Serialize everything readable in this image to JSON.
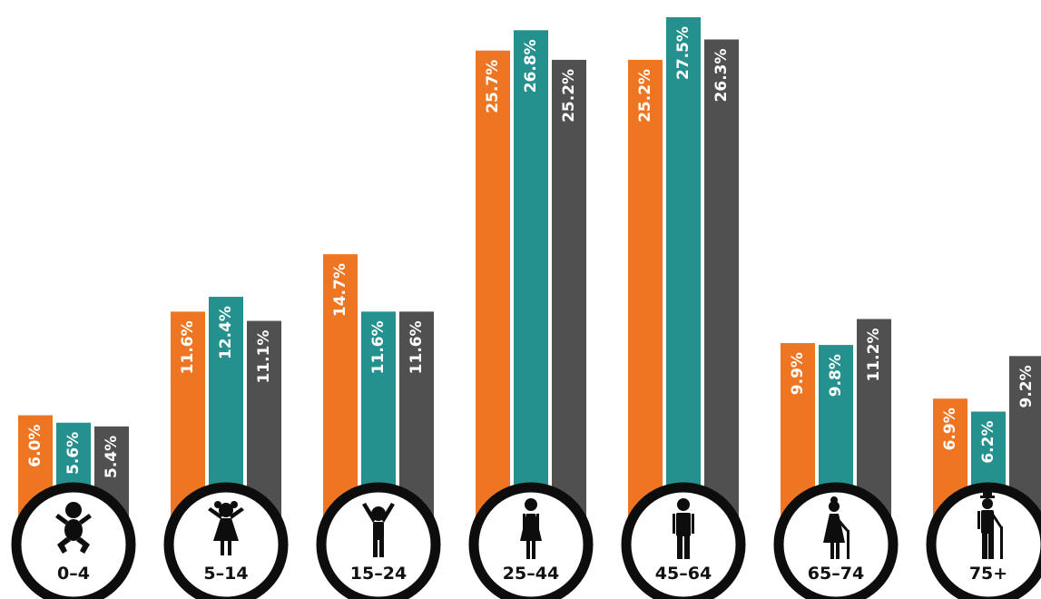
{
  "chart_data": {
    "type": "bar",
    "categories": [
      "0–4",
      "5–14",
      "15–24",
      "25–44",
      "45–64",
      "65–74",
      "75+"
    ],
    "icons": [
      "baby-icon",
      "girl-icon",
      "youth-arms-raised-icon",
      "woman-icon",
      "man-icon",
      "elderly-woman-cane-icon",
      "elderly-man-hat-cane-icon"
    ],
    "series": [
      {
        "values": [
          6.0,
          11.6,
          14.7,
          25.7,
          25.2,
          9.9,
          6.9
        ],
        "labels": [
          "6.0%",
          "11.6%",
          "14.7%",
          "25.7%",
          "25.2%",
          "9.9%",
          "6.9%"
        ],
        "color": "#ee7623"
      },
      {
        "values": [
          5.6,
          12.4,
          11.6,
          26.8,
          27.5,
          9.8,
          6.2
        ],
        "labels": [
          "5.6%",
          "12.4%",
          "11.6%",
          "26.8%",
          "27.5%",
          "9.8%",
          "6.2%"
        ],
        "color": "#25918f"
      },
      {
        "values": [
          5.4,
          11.1,
          11.6,
          25.2,
          26.3,
          11.2,
          9.2
        ],
        "labels": [
          "5.4%",
          "11.1%",
          "11.6%",
          "25.2%",
          "26.3%",
          "11.2%",
          "9.2%"
        ],
        "color": "#505050"
      }
    ],
    "unit": "%",
    "ylim": [
      0,
      29
    ],
    "grid": false,
    "legend": "none"
  }
}
